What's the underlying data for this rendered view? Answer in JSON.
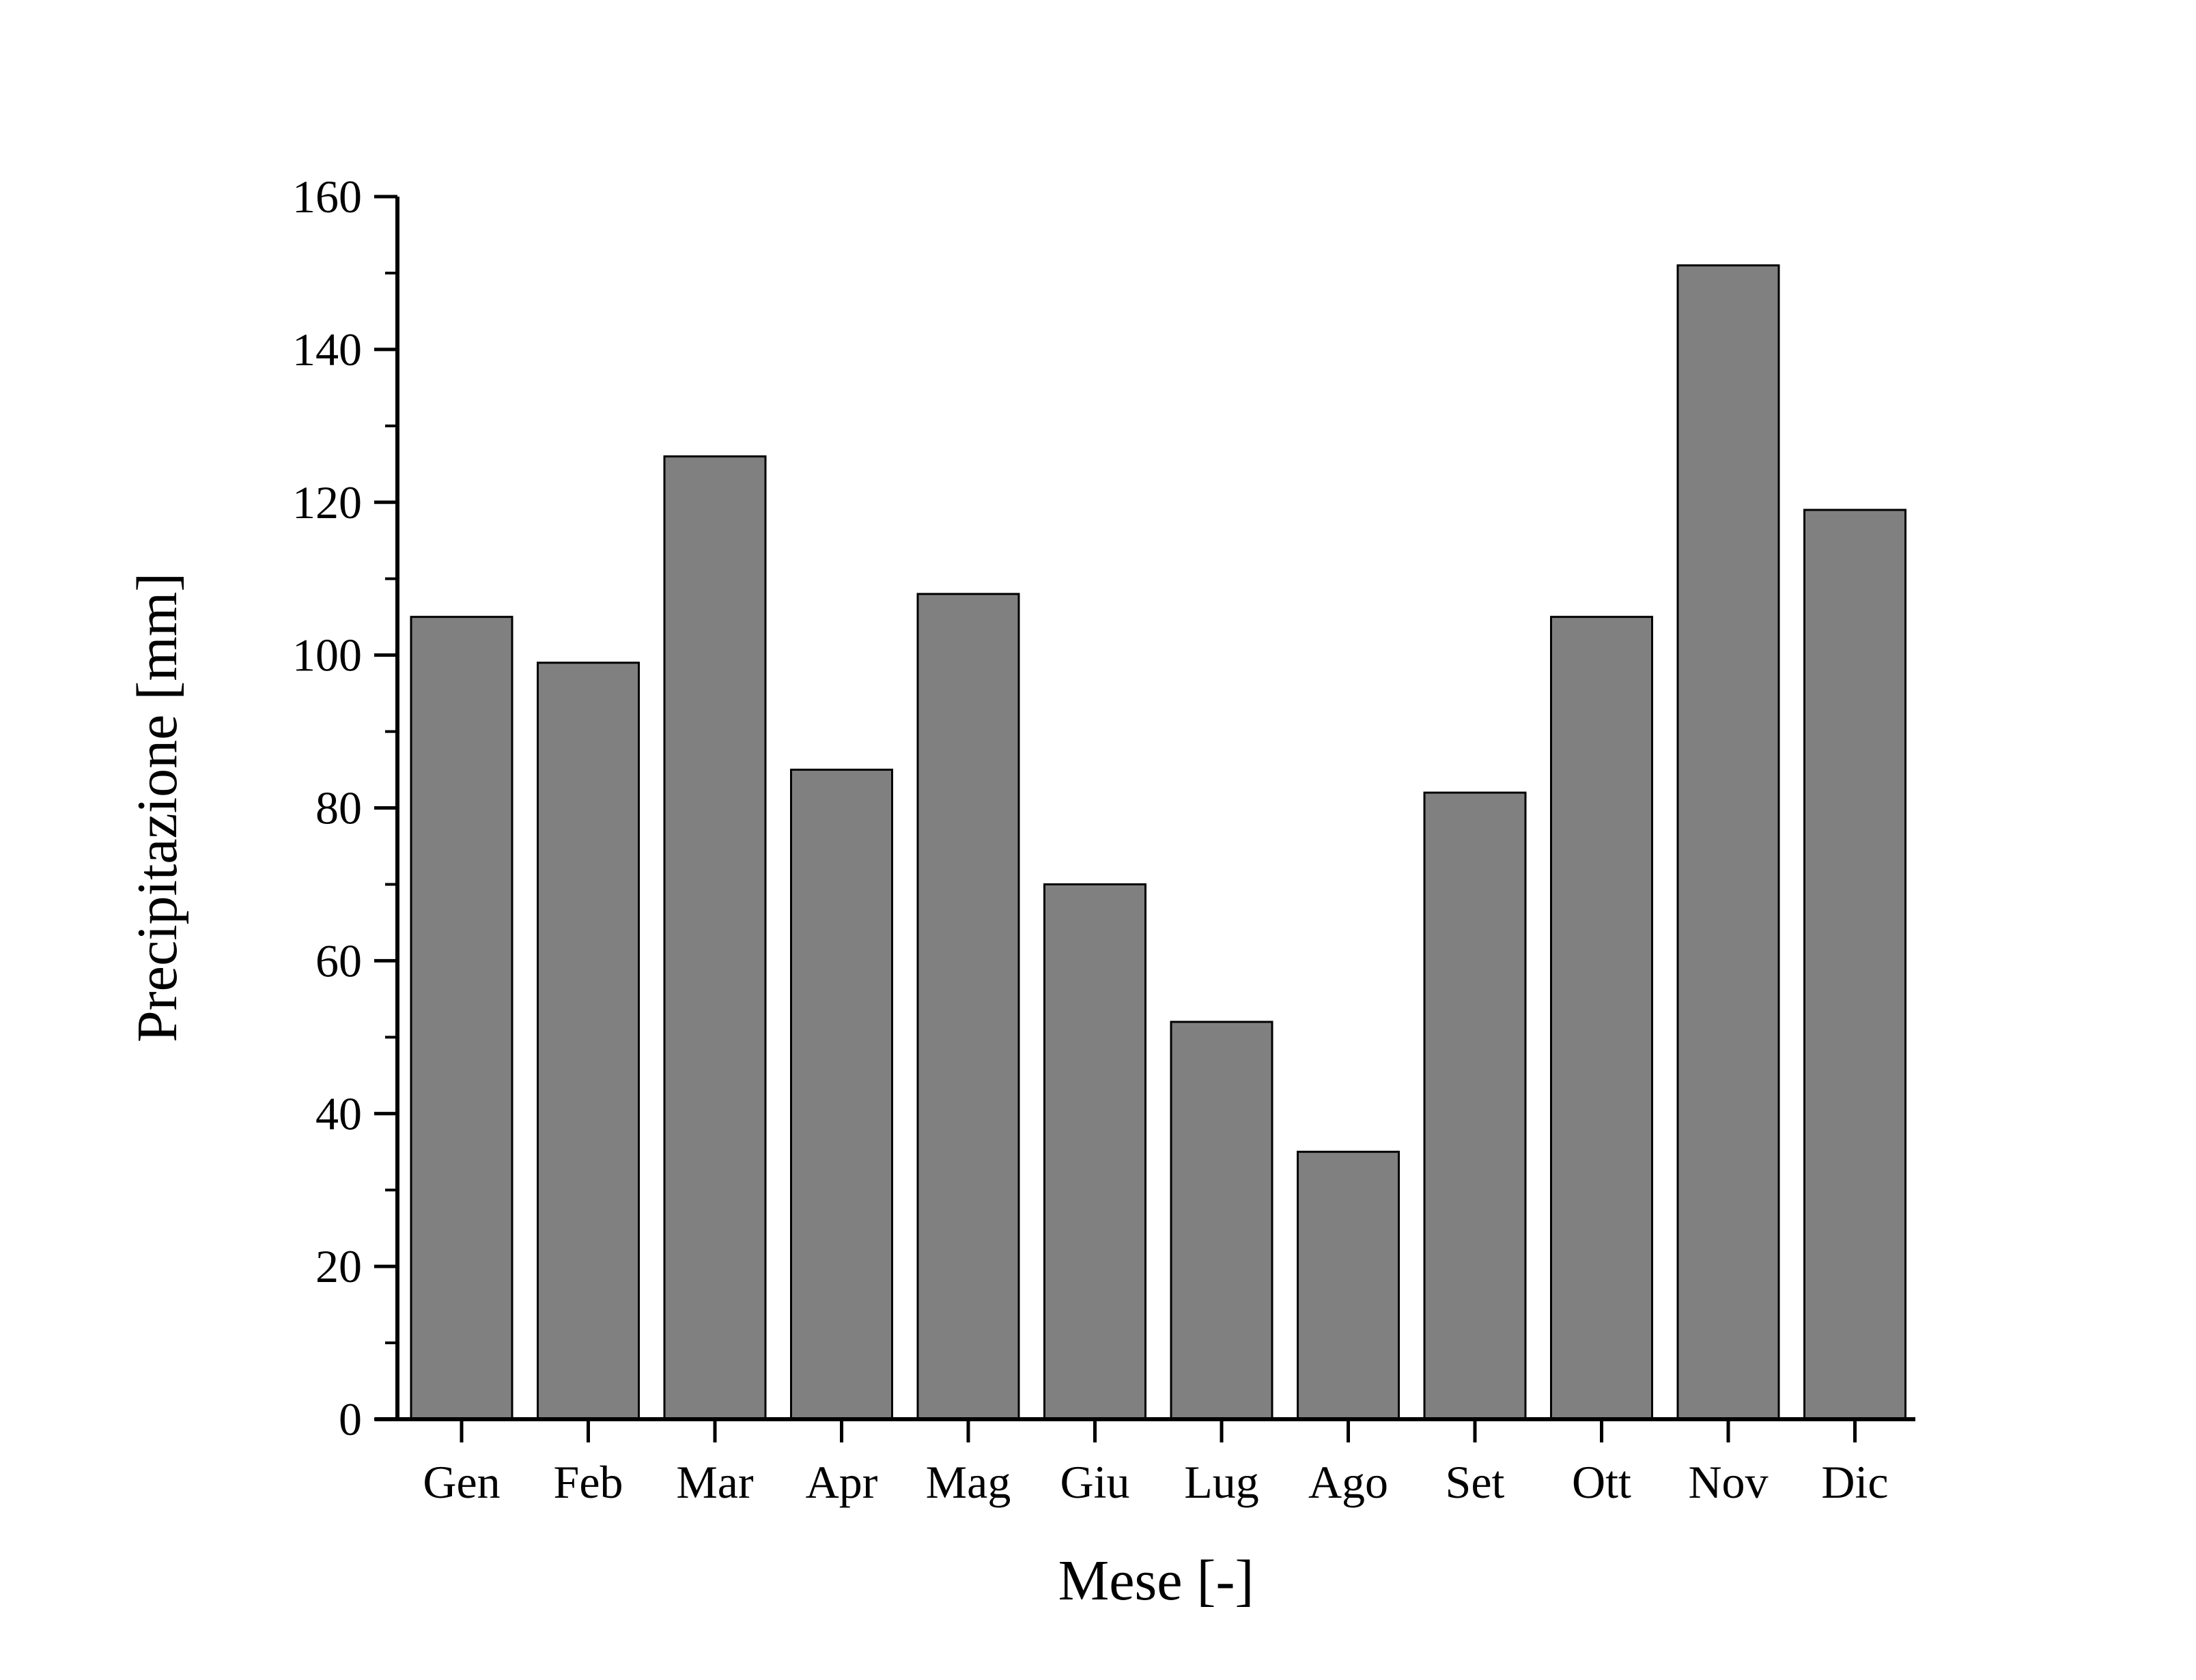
{
  "chart_data": {
    "type": "bar",
    "title": "",
    "xlabel": "Mese [-]",
    "ylabel": "Precipitazione [mm]",
    "categories": [
      "Gen",
      "Feb",
      "Mar",
      "Apr",
      "Mag",
      "Giu",
      "Lug",
      "Ago",
      "Set",
      "Ott",
      "Nov",
      "Dic"
    ],
    "values": [
      105,
      99,
      126,
      85,
      108,
      70,
      52,
      35,
      82,
      105,
      151,
      119
    ],
    "ylim": [
      0,
      160
    ],
    "yticks": [
      "0",
      "20",
      "40",
      "60",
      "80",
      "100",
      "120",
      "140",
      "160"
    ],
    "grid": false,
    "legend": "none",
    "bar_color": "#808080",
    "edge_color": "#000000"
  }
}
